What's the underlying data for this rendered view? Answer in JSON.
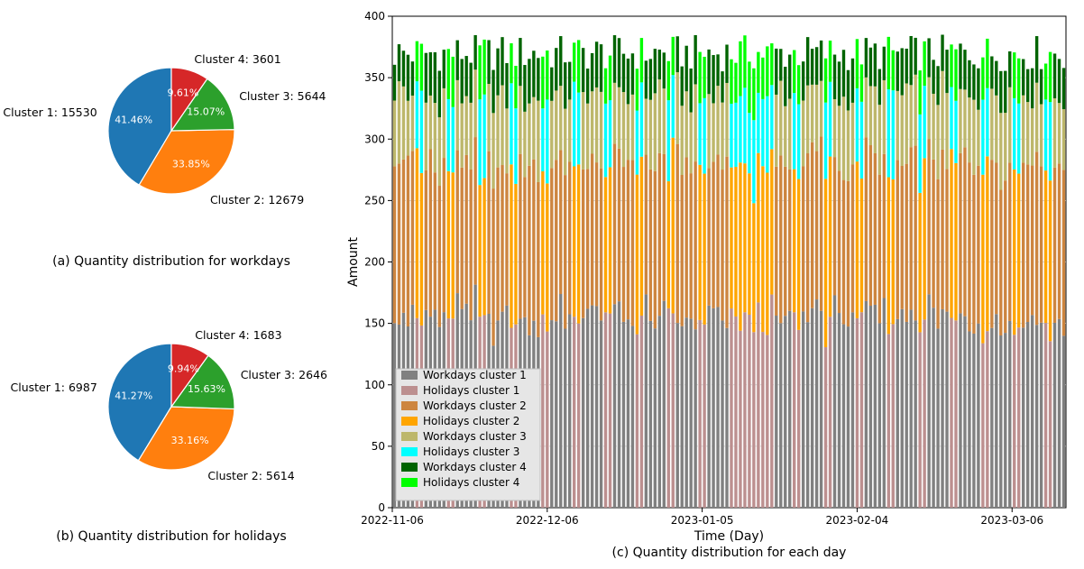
{
  "colors": {
    "pie": [
      "#1f77b4",
      "#ff7f0e",
      "#2ca02c",
      "#d62728"
    ],
    "bars": {
      "workdays_c1": "#808080",
      "holidays_c1": "#bc8f8f",
      "workdays_c2": "#cd853f",
      "holidays_c2": "#ffa500",
      "workdays_c3": "#bdb76b",
      "holidays_c3": "#00ffff",
      "workdays_c4": "#006400",
      "holidays_c4": "#00ff00"
    },
    "legend_bg": "#e6e6e6",
    "legend_border": "#bfbfbf",
    "grid": "#cccccc",
    "axis": "#000000"
  },
  "pie_a": {
    "caption": "(a) Quantity distribution for workdays",
    "slices": [
      {
        "name": "Cluster 1",
        "value": 15530,
        "pct": "41.46%"
      },
      {
        "name": "Cluster 2",
        "value": 12679,
        "pct": "33.85%"
      },
      {
        "name": "Cluster 3",
        "value": 5644,
        "pct": "15.07%"
      },
      {
        "name": "Cluster 4",
        "value": 3601,
        "pct": "9.61%"
      }
    ]
  },
  "pie_b": {
    "caption": "(b) Quantity distribution for holidays",
    "slices": [
      {
        "name": "Cluster 1",
        "value": 6987,
        "pct": "41.27%"
      },
      {
        "name": "Cluster 2",
        "value": 5614,
        "pct": "33.16%"
      },
      {
        "name": "Cluster 3",
        "value": 2646,
        "pct": "15.63%"
      },
      {
        "name": "Cluster 4",
        "value": 1683,
        "pct": "9.94%"
      }
    ]
  },
  "barchart": {
    "caption": "(c) Quantity distribution for each day",
    "xlabel": "Time (Day)",
    "ylabel": "Amount",
    "ylim": [
      0,
      400
    ],
    "ytick_step": 50,
    "xticks": [
      "2022-11-06",
      "2022-12-06",
      "2023-01-05",
      "2023-02-04",
      "2023-03-06"
    ],
    "n_days": 150,
    "bar_width_ratio": 0.68,
    "top_band": {
      "min": 355,
      "max": 385
    },
    "legend": [
      {
        "key": "workdays_c1",
        "label": "Workdays cluster 1"
      },
      {
        "key": "holidays_c1",
        "label": "Holidays cluster 1"
      },
      {
        "key": "workdays_c2",
        "label": "Workdays cluster 2"
      },
      {
        "key": "holidays_c2",
        "label": "Holidays cluster 2"
      },
      {
        "key": "workdays_c3",
        "label": "Workdays cluster 3"
      },
      {
        "key": "holidays_c3",
        "label": "Holidays cluster 3"
      },
      {
        "key": "workdays_c4",
        "label": "Workdays cluster 4"
      },
      {
        "key": "holidays_c4",
        "label": "Holidays cluster 4"
      }
    ],
    "fractions_workday": {
      "c1": 0.42,
      "c2": 0.34,
      "c3": 0.15,
      "c4": 0.09
    },
    "fractions_holiday": {
      "c1": 0.41,
      "c2": 0.33,
      "c3": 0.16,
      "c4": 0.1
    }
  },
  "fonts": {
    "label": 12.5,
    "caption": 14,
    "axis": 12
  }
}
